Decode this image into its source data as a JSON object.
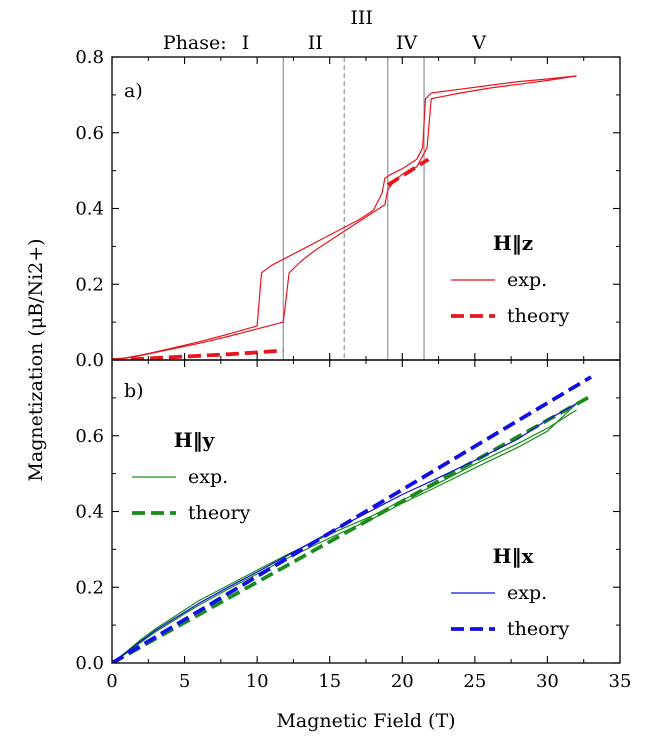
{
  "chart_data": [
    {
      "panel": "a)",
      "type": "line",
      "ylabel": "Magnetization (μB/Ni2+)",
      "xlim": [
        0,
        35
      ],
      "ylim": [
        0,
        0.8
      ],
      "yticks": [
        "0.0",
        "0.2",
        "0.4",
        "0.6",
        "0.8"
      ],
      "phase_prefix": "Phase:",
      "phases": [
        {
          "label": "I",
          "x": 9.2,
          "row": 0
        },
        {
          "label": "II",
          "x": 14,
          "row": 0
        },
        {
          "label": "III",
          "x": 17.2,
          "row": 1
        },
        {
          "label": "IV",
          "x": 20.3,
          "row": 0
        },
        {
          "label": "V",
          "x": 25.3,
          "row": 0
        }
      ],
      "boundaries": [
        {
          "x": 11.8,
          "style": "solid"
        },
        {
          "x": 16.0,
          "style": "dashed"
        },
        {
          "x": 19.0,
          "style": "solid"
        },
        {
          "x": 21.5,
          "style": "solid"
        }
      ],
      "legend": {
        "title": "H‖z",
        "entries": [
          {
            "label": "exp.",
            "color": "#e8141e",
            "style": "thin"
          },
          {
            "label": "theory",
            "color": "#e8141e",
            "style": "dashed"
          }
        ]
      },
      "series": [
        {
          "name": "exp.",
          "color": "#e8141e",
          "style": "thin",
          "x": [
            0,
            1,
            2,
            3,
            4,
            5,
            6,
            7,
            8,
            9,
            10,
            10.3,
            11,
            12,
            13,
            14,
            15,
            16,
            17,
            18,
            18.6,
            18.8,
            19.2,
            20,
            21,
            21.4,
            21.6,
            22,
            24,
            26,
            28,
            30,
            32
          ],
          "y": [
            0,
            0.006,
            0.013,
            0.021,
            0.03,
            0.039,
            0.048,
            0.058,
            0.068,
            0.079,
            0.09,
            0.23,
            0.25,
            0.27,
            0.29,
            0.31,
            0.33,
            0.35,
            0.37,
            0.395,
            0.44,
            0.48,
            0.49,
            0.505,
            0.53,
            0.56,
            0.69,
            0.705,
            0.715,
            0.725,
            0.735,
            0.742,
            0.75
          ]
        },
        {
          "name": "exp.",
          "color": "#e8141e",
          "style": "thin",
          "x": [
            0,
            1,
            2,
            3,
            4,
            5,
            6,
            7,
            8,
            9,
            10,
            11,
            11.8,
            12.2,
            13,
            14,
            15,
            16,
            17,
            18,
            18.8,
            19.0,
            19.5,
            20,
            21,
            21.7,
            22,
            24,
            26,
            28,
            30,
            32
          ],
          "y": [
            0,
            0.005,
            0.012,
            0.02,
            0.028,
            0.036,
            0.044,
            0.053,
            0.062,
            0.072,
            0.082,
            0.092,
            0.1,
            0.23,
            0.26,
            0.29,
            0.315,
            0.34,
            0.365,
            0.39,
            0.41,
            0.45,
            0.475,
            0.49,
            0.51,
            0.56,
            0.69,
            0.705,
            0.718,
            0.728,
            0.738,
            0.75
          ]
        },
        {
          "name": "theory",
          "color": "#e8141e",
          "style": "dashed",
          "x": [
            0,
            2,
            4,
            6,
            8,
            10,
            11.8
          ],
          "y": [
            0,
            0.003,
            0.007,
            0.011,
            0.015,
            0.02,
            0.025
          ]
        },
        {
          "name": "theory",
          "color": "#e8141e",
          "style": "dashed",
          "x": [
            19.0,
            21.8
          ],
          "y": [
            0.462,
            0.53
          ]
        }
      ]
    },
    {
      "panel": "b)",
      "type": "line",
      "xlabel": "Magnetic Field (T)",
      "xlim": [
        0,
        35
      ],
      "ylim": [
        0,
        0.8
      ],
      "xticks": [
        "0",
        "5",
        "10",
        "15",
        "20",
        "25",
        "30",
        "35"
      ],
      "yticks": [
        "0.0",
        "0.2",
        "0.4",
        "0.6"
      ],
      "legends": [
        {
          "title": "H‖y",
          "entries": [
            {
              "label": "exp.",
              "color": "#1a8c1a",
              "style": "thin"
            },
            {
              "label": "theory",
              "color": "#1a8c1a",
              "style": "dashed"
            }
          ]
        },
        {
          "title": "H‖x",
          "entries": [
            {
              "label": "exp.",
              "color": "#1010e0",
              "style": "thin"
            },
            {
              "label": "theory",
              "color": "#1010e0",
              "style": "dashed"
            }
          ]
        }
      ],
      "series": [
        {
          "name": "exp.",
          "color": "#1a8c1a",
          "style": "thin",
          "x": [
            0,
            1,
            2,
            3,
            4,
            5,
            6,
            8,
            10,
            12,
            15,
            18,
            20,
            22,
            25,
            28,
            30,
            32
          ],
          "y": [
            0,
            0.03,
            0.062,
            0.09,
            0.115,
            0.14,
            0.165,
            0.205,
            0.245,
            0.285,
            0.34,
            0.39,
            0.43,
            0.465,
            0.525,
            0.58,
            0.62,
            0.668
          ]
        },
        {
          "name": "exp.",
          "color": "#1a8c1a",
          "style": "thin",
          "x": [
            0,
            1,
            2,
            3,
            4,
            5,
            6,
            8,
            10,
            12,
            15,
            18,
            20,
            22,
            25,
            28,
            30,
            32
          ],
          "y": [
            0,
            0.026,
            0.055,
            0.082,
            0.106,
            0.13,
            0.153,
            0.195,
            0.235,
            0.275,
            0.33,
            0.382,
            0.422,
            0.458,
            0.515,
            0.57,
            0.612,
            0.685
          ]
        },
        {
          "name": "theory",
          "color": "#1a8c1a",
          "style": "dashed",
          "x": [
            0,
            33
          ],
          "y": [
            0,
            0.705
          ]
        },
        {
          "name": "exp.",
          "color": "#1010e0",
          "style": "thin",
          "x": [
            0,
            1,
            2,
            3,
            4,
            5,
            6,
            8,
            10,
            12,
            15,
            18,
            20,
            22,
            25,
            28,
            30,
            32
          ],
          "y": [
            0,
            0.028,
            0.058,
            0.086,
            0.11,
            0.134,
            0.158,
            0.2,
            0.24,
            0.282,
            0.345,
            0.405,
            0.445,
            0.48,
            0.535,
            0.592,
            0.642,
            0.685
          ]
        },
        {
          "name": "theory",
          "color": "#1010e0",
          "style": "dashed",
          "x": [
            0,
            33
          ],
          "y": [
            0,
            0.755
          ]
        }
      ]
    }
  ]
}
